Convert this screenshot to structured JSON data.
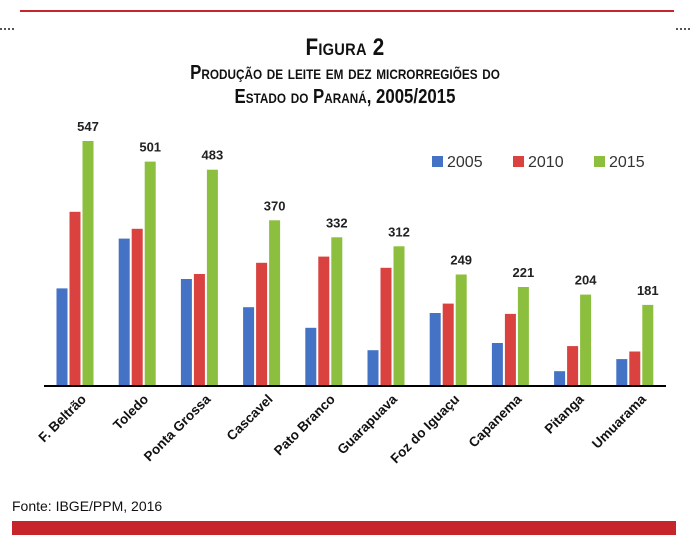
{
  "figure_label": "Figura 2",
  "title_line1": "Produção de leite em dez microrregiões do",
  "title_line2": "Estado do Paraná, 2005/2015",
  "source": "Fonte: IBGE/PPM, 2016",
  "chart_data": {
    "type": "bar",
    "title": "Produção de leite em dez microrregiões do Estado do Paraná, 2005/2015",
    "xlabel": "",
    "ylabel": "",
    "ylim": [
      0,
      600
    ],
    "grid": false,
    "legend_position": "top-right",
    "categories": [
      "F. Beltrão",
      "Toledo",
      "Ponta Grossa",
      "Cascavel",
      "Pato Branco",
      "Guarapuava",
      "Foz do Iguaçu",
      "Capanema",
      "Pitanga",
      "Umuarama"
    ],
    "series": [
      {
        "name": "2005",
        "color": "#4472c4",
        "values": [
          218,
          329,
          239,
          176,
          130,
          80,
          163,
          96,
          33,
          60
        ]
      },
      {
        "name": "2010",
        "color": "#d9423f",
        "values": [
          389,
          351,
          250,
          275,
          289,
          264,
          184,
          161,
          89,
          77
        ]
      },
      {
        "name": "2015",
        "color": "#8dbf3f",
        "values": [
          547,
          501,
          483,
          370,
          332,
          312,
          249,
          221,
          204,
          181
        ]
      }
    ],
    "data_labels": [
      "547",
      "501",
      "483",
      "370",
      "332",
      "312",
      "249",
      "221",
      "204",
      "181"
    ]
  }
}
